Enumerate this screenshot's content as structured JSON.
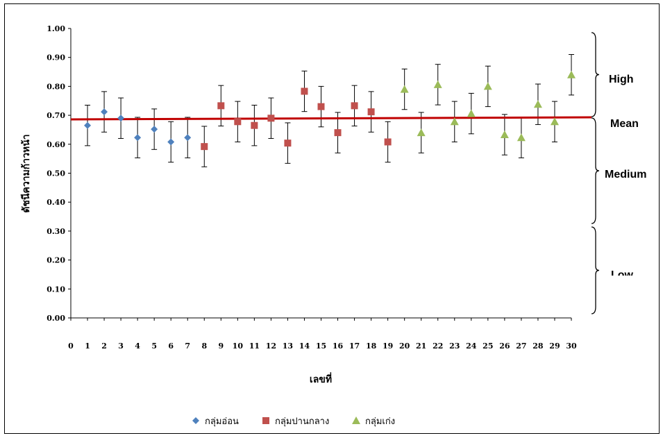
{
  "chart_data": {
    "type": "scatter",
    "title": "",
    "xlabel": "เลขที่",
    "ylabel": "ดัชนีความก้าวหน้า",
    "xlim": [
      0,
      30
    ],
    "ylim": [
      0,
      1.0
    ],
    "x_ticks": [
      "0",
      "1",
      "2",
      "3",
      "4",
      "5",
      "6",
      "7",
      "8",
      "9",
      "10",
      "11",
      "12",
      "13",
      "14",
      "15",
      "16",
      "17",
      "18",
      "19",
      "20",
      "21",
      "22",
      "23",
      "24",
      "25",
      "26",
      "27",
      "28",
      "29",
      "30"
    ],
    "y_ticks": [
      "0.00",
      "0.10",
      "0.20",
      "0.30",
      "0.40",
      "0.50",
      "0.60",
      "0.70",
      "0.80",
      "0.90",
      "1.00"
    ],
    "grid": false,
    "legend_position": "bottom",
    "mean_line": {
      "y_start": 0.686,
      "y_end": 0.693,
      "color": "#c00000"
    },
    "bands": [
      {
        "label": "High",
        "range": [
          0.85,
          1.0
        ]
      },
      {
        "label": "Mean",
        "range": [
          0.69,
          0.69
        ]
      },
      {
        "label": "Medium",
        "range": [
          0.3,
          0.7
        ]
      },
      {
        "label": "Low",
        "range": [
          0.0,
          0.3
        ]
      }
    ],
    "series": [
      {
        "name": "กลุ่มอ่อน",
        "marker": "diamond",
        "color": "#4f81bd",
        "x": [
          1,
          2,
          3,
          4,
          5,
          6,
          7
        ],
        "y": [
          0.665,
          0.712,
          0.69,
          0.623,
          0.652,
          0.608,
          0.623
        ],
        "err": [
          0.07,
          0.07,
          0.07,
          0.07,
          0.07,
          0.07,
          0.07
        ]
      },
      {
        "name": "กลุ่มปานกลาง",
        "marker": "square",
        "color": "#c0504d",
        "x": [
          8,
          9,
          10,
          11,
          12,
          13,
          14,
          15,
          16,
          17,
          18,
          19
        ],
        "y": [
          0.592,
          0.733,
          0.678,
          0.665,
          0.69,
          0.604,
          0.783,
          0.73,
          0.64,
          0.733,
          0.712,
          0.608
        ],
        "err": [
          0.07,
          0.07,
          0.07,
          0.07,
          0.07,
          0.07,
          0.07,
          0.07,
          0.07,
          0.07,
          0.07,
          0.07
        ]
      },
      {
        "name": "กลุ่มเก่ง",
        "marker": "triangle",
        "color": "#9bbb59",
        "x": [
          20,
          21,
          22,
          23,
          24,
          25,
          26,
          27,
          28,
          29,
          30
        ],
        "y": [
          0.79,
          0.64,
          0.806,
          0.678,
          0.706,
          0.8,
          0.633,
          0.623,
          0.738,
          0.678,
          0.84
        ],
        "err": [
          0.07,
          0.07,
          0.07,
          0.07,
          0.07,
          0.07,
          0.07,
          0.07,
          0.07,
          0.07,
          0.07
        ]
      }
    ]
  }
}
